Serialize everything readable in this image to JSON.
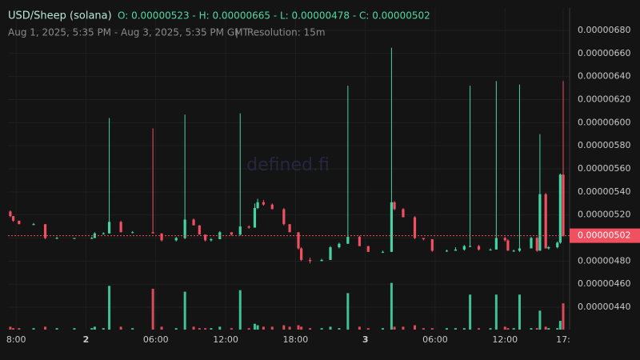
{
  "chart_data": {
    "type": "candlestick",
    "title": "USD/Sheep (solana)",
    "ohlc_text": "O: 0.00000523 - H: 0.00000665 - L: 0.00000478 - C: 0.00000502",
    "subtitle": "Aug 1, 2025, 5:35 PM - Aug 3, 2025, 5:35 PM GMT",
    "separator": "|",
    "resolution": "Resolution: 15m",
    "watermark": "defined.fi",
    "up_color": "#45d3a3",
    "down_color": "#f0505f",
    "last_price": {
      "value": 5.02e-06,
      "label": "0.00000502"
    },
    "x": [
      17.5,
      17.75,
      18.25,
      19.5,
      20.5,
      21.5,
      23,
      24.5,
      24.75,
      25.5,
      26,
      27,
      28,
      29.75,
      30.5,
      31.75,
      32.5,
      33.25,
      33.75,
      34.25,
      34.75,
      35.5,
      36.5,
      37.25,
      38,
      38.5,
      38.75,
      39.25,
      40,
      41,
      41.5,
      42.25,
      42.5,
      43.25,
      44.25,
      45,
      45.75,
      46.5,
      47.5,
      48.25,
      49.5,
      50.25,
      50.5,
      51.25,
      52.25,
      53,
      53.75,
      55,
      55.75,
      56.5,
      57,
      57.75,
      58.75,
      59.25,
      60,
      60.25,
      60.75,
      61.25,
      62.25,
      62.75,
      63,
      63.5,
      63.75,
      64.5,
      64.75,
      65
    ],
    "open": [
      5.23e-06,
      5.19e-06,
      5.15e-06,
      5.12e-06,
      5.12e-06,
      5e-06,
      5e-06,
      5e-06,
      5e-06,
      5.04e-06,
      5.04e-06,
      5.14e-06,
      5.05e-06,
      5.05e-06,
      5.04e-06,
      4.98e-06,
      5e-06,
      5.16e-06,
      5.11e-06,
      5.03e-06,
      4.98e-06,
      4.99e-06,
      5.05e-06,
      5.03e-06,
      5.1e-06,
      5.09e-06,
      5.26e-06,
      5.31e-06,
      5.29e-06,
      5.25e-06,
      5.12e-06,
      5.05e-06,
      4.91e-06,
      4.81e-06,
      4.8e-06,
      4.81e-06,
      4.92e-06,
      4.95e-06,
      5.01e-06,
      4.93e-06,
      4.88e-06,
      4.88e-06,
      5.31e-06,
      5.25e-06,
      5.18e-06,
      5e-06,
      4.99e-06,
      4.89e-06,
      4.89e-06,
      4.9e-06,
      4.93e-06,
      4.93e-06,
      4.9e-06,
      4.9e-06,
      5e-06,
      4.98e-06,
      4.89e-06,
      4.89e-06,
      4.91e-06,
      5e-06,
      4.89e-06,
      5.38e-06,
      4.91e-06,
      4.92e-06,
      4.96e-06,
      5.55e-06
    ],
    "high": [
      5.24e-06,
      5.19e-06,
      5.15e-06,
      5.13e-06,
      5.12e-06,
      5.01e-06,
      5e-06,
      5.01e-06,
      5.05e-06,
      5.05e-06,
      6.04e-06,
      5.15e-06,
      5.06e-06,
      5.95e-06,
      5.04e-06,
      5.01e-06,
      6.07e-06,
      5.17e-06,
      5.11e-06,
      5.03e-06,
      5e-06,
      5.06e-06,
      5.05e-06,
      6.08e-06,
      5.11e-06,
      5.3e-06,
      5.34e-06,
      5.33e-06,
      5.3e-06,
      5.26e-06,
      5.12e-06,
      5.05e-06,
      4.92e-06,
      4.83e-06,
      4.82e-06,
      4.93e-06,
      4.96e-06,
      6.32e-06,
      5.02e-06,
      4.93e-06,
      4.89e-06,
      6.65e-06,
      5.32e-06,
      5.26e-06,
      5.19e-06,
      5e-06,
      4.99e-06,
      4.9e-06,
      4.92e-06,
      4.94e-06,
      6.32e-06,
      4.94e-06,
      4.91e-06,
      6.36e-06,
      5.01e-06,
      4.99e-06,
      4.9e-06,
      6.33e-06,
      5.01e-06,
      5.01e-06,
      5.9e-06,
      5.39e-06,
      4.93e-06,
      4.97e-06,
      5.56e-06,
      6.36e-06
    ],
    "low": [
      5.18e-06,
      5.14e-06,
      5.12e-06,
      5.11e-06,
      4.99e-06,
      4.99e-06,
      4.99e-06,
      4.99e-06,
      5e-06,
      5.03e-06,
      5.04e-06,
      5.05e-06,
      5.04e-06,
      5.04e-06,
      4.97e-06,
      4.97e-06,
      4.99e-06,
      5.11e-06,
      5.03e-06,
      4.97e-06,
      4.97e-06,
      4.99e-06,
      5.02e-06,
      5.02e-06,
      5.08e-06,
      5.09e-06,
      5.25e-06,
      5.28e-06,
      5.25e-06,
      5.11e-06,
      5.05e-06,
      4.9e-06,
      4.8e-06,
      4.78e-06,
      4.8e-06,
      4.81e-06,
      4.91e-06,
      4.95e-06,
      4.93e-06,
      4.88e-06,
      4.87e-06,
      4.88e-06,
      5.24e-06,
      5.18e-06,
      4.99e-06,
      4.98e-06,
      4.88e-06,
      4.88e-06,
      4.89e-06,
      4.89e-06,
      4.92e-06,
      4.89e-06,
      4.89e-06,
      4.9e-06,
      4.97e-06,
      4.89e-06,
      4.88e-06,
      4.88e-06,
      4.91e-06,
      4.88e-06,
      4.89e-06,
      4.91e-06,
      4.9e-06,
      4.91e-06,
      4.95e-06,
      5.01e-06
    ],
    "close": [
      5.19e-06,
      5.15e-06,
      5.12e-06,
      5.12e-06,
      5e-06,
      5e-06,
      5e-06,
      5e-06,
      5.04e-06,
      5.04e-06,
      5.14e-06,
      5.05e-06,
      5.05e-06,
      5.04e-06,
      4.98e-06,
      5e-06,
      5.16e-06,
      5.11e-06,
      5.03e-06,
      4.98e-06,
      4.99e-06,
      5.05e-06,
      5.03e-06,
      5.1e-06,
      5.09e-06,
      5.26e-06,
      5.31e-06,
      5.29e-06,
      5.25e-06,
      5.12e-06,
      5.05e-06,
      4.91e-06,
      4.81e-06,
      4.8e-06,
      4.81e-06,
      4.92e-06,
      4.95e-06,
      5.01e-06,
      4.93e-06,
      4.88e-06,
      4.88e-06,
      5.31e-06,
      5.25e-06,
      5.18e-06,
      5e-06,
      4.99e-06,
      4.89e-06,
      4.89e-06,
      4.9e-06,
      4.93e-06,
      4.93e-06,
      4.9e-06,
      4.9e-06,
      5e-06,
      4.98e-06,
      4.89e-06,
      4.89e-06,
      4.91e-06,
      5e-06,
      4.89e-06,
      5.38e-06,
      4.91e-06,
      4.92e-06,
      4.96e-06,
      5.55e-06,
      5.02e-06
    ],
    "volume": [
      2,
      1,
      1,
      1,
      2,
      1,
      1,
      1,
      2,
      1,
      30,
      2,
      1,
      28,
      2,
      1,
      26,
      2,
      1,
      1,
      1,
      2,
      1,
      27,
      1,
      4,
      3,
      2,
      2,
      3,
      2,
      3,
      2,
      1,
      1,
      2,
      1,
      25,
      2,
      1,
      1,
      32,
      2,
      2,
      3,
      1,
      1,
      1,
      1,
      1,
      24,
      1,
      1,
      24,
      2,
      1,
      1,
      24,
      1,
      1,
      13,
      2,
      1,
      1,
      6,
      18
    ],
    "volume_lim": [
      0,
      34
    ],
    "xlim": [
      17.3,
      65.55
    ],
    "ylim": [
      4.206e-06,
      6.994e-06
    ],
    "yticks": [
      {
        "value": 4.4e-06,
        "label": "0.00000440"
      },
      {
        "value": 4.6e-06,
        "label": "0.00000460"
      },
      {
        "value": 4.8e-06,
        "label": "0.00000480"
      },
      {
        "value": 5e-06,
        "label": "0.00000500"
      },
      {
        "value": 5.2e-06,
        "label": "0.00000520"
      },
      {
        "value": 5.4e-06,
        "label": "0.00000540"
      },
      {
        "value": 5.6e-06,
        "label": "0.00000560"
      },
      {
        "value": 5.8e-06,
        "label": "0.00000580"
      },
      {
        "value": 6e-06,
        "label": "0.00000600"
      },
      {
        "value": 6.2e-06,
        "label": "0.00000620"
      },
      {
        "value": 6.4e-06,
        "label": "0.00000640"
      },
      {
        "value": 6.6e-06,
        "label": "0.00000660"
      },
      {
        "value": 6.8e-06,
        "label": "0.00000680"
      }
    ],
    "xticks": [
      {
        "value": 18,
        "label": "8:00"
      },
      {
        "value": 24,
        "label": "2"
      },
      {
        "value": 30,
        "label": "06:00"
      },
      {
        "value": 36,
        "label": "12:00"
      },
      {
        "value": 42,
        "label": "18:00"
      },
      {
        "value": 48,
        "label": "3"
      },
      {
        "value": 54,
        "label": "06:00"
      },
      {
        "value": 60,
        "label": "12:00"
      },
      {
        "value": 65,
        "label": "17:"
      }
    ],
    "grid": true
  }
}
